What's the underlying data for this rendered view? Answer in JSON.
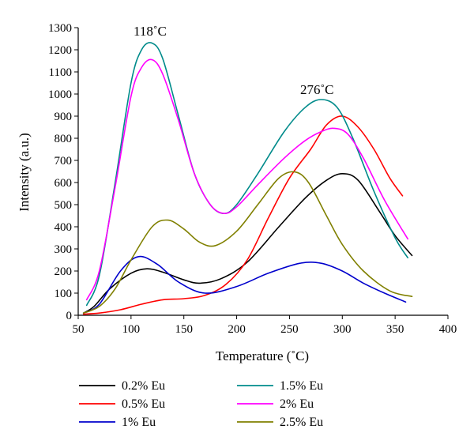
{
  "chart_data": {
    "type": "line",
    "xlabel": "Temperature (˚C)",
    "ylabel": "Intensity (a.u.)",
    "xlim": [
      50,
      400
    ],
    "ylim": [
      0,
      1300
    ],
    "xticks": [
      50,
      100,
      150,
      200,
      250,
      300,
      350,
      400
    ],
    "yticks": [
      0,
      100,
      200,
      300,
      400,
      500,
      600,
      700,
      800,
      900,
      1000,
      1100,
      1200,
      1300
    ],
    "grid": false,
    "legend_placement": "bottom",
    "annotations": [
      {
        "text": "118˚C",
        "x": 118,
        "y": 1265
      },
      {
        "text": "276˚C",
        "x": 276,
        "y": 1000
      }
    ],
    "series": [
      {
        "name": "0.2% Eu",
        "color": "#000000",
        "x": [
          55,
          65,
          80,
          100,
          115,
          130,
          150,
          165,
          185,
          210,
          240,
          265,
          285,
          300,
          315,
          335,
          350,
          366
        ],
        "y": [
          10,
          40,
          120,
          190,
          210,
          195,
          160,
          145,
          165,
          240,
          400,
          530,
          610,
          640,
          610,
          470,
          360,
          270
        ]
      },
      {
        "name": "0.5% Eu",
        "color": "#ff0000",
        "x": [
          55,
          70,
          90,
          110,
          130,
          150,
          170,
          190,
          210,
          230,
          250,
          270,
          285,
          300,
          315,
          330,
          345,
          357
        ],
        "y": [
          5,
          10,
          25,
          50,
          70,
          75,
          90,
          140,
          250,
          440,
          620,
          750,
          860,
          900,
          850,
          750,
          620,
          540
        ]
      },
      {
        "name": "1% Eu",
        "color": "#0000cc",
        "x": [
          55,
          70,
          90,
          107,
          125,
          145,
          170,
          200,
          230,
          260,
          280,
          300,
          320,
          340,
          360
        ],
        "y": [
          10,
          50,
          200,
          265,
          230,
          150,
          100,
          130,
          190,
          235,
          235,
          200,
          145,
          100,
          60
        ]
      },
      {
        "name": "1.5% Eu",
        "color": "#008b8b",
        "x": [
          58,
          70,
          85,
          100,
          110,
          120,
          130,
          145,
          160,
          175,
          188,
          200,
          220,
          245,
          265,
          280,
          295,
          310,
          330,
          350,
          362
        ],
        "y": [
          45,
          180,
          600,
          1050,
          1200,
          1230,
          1160,
          900,
          640,
          500,
          460,
          500,
          640,
          830,
          940,
          975,
          940,
          800,
          560,
          350,
          260
        ]
      },
      {
        "name": "2% Eu",
        "color": "#ff00ff",
        "x": [
          58,
          70,
          85,
          100,
          110,
          120,
          130,
          145,
          160,
          175,
          188,
          200,
          220,
          245,
          265,
          280,
          292,
          305,
          320,
          340,
          362
        ],
        "y": [
          70,
          200,
          580,
          990,
          1120,
          1155,
          1090,
          880,
          640,
          500,
          460,
          490,
          590,
          710,
          790,
          830,
          845,
          820,
          710,
          520,
          345
        ]
      },
      {
        "name": "2.5% Eu",
        "color": "#808000",
        "x": [
          55,
          70,
          85,
          100,
          120,
          135,
          150,
          165,
          180,
          200,
          220,
          240,
          255,
          268,
          285,
          300,
          320,
          345,
          366
        ],
        "y": [
          10,
          40,
          120,
          250,
          400,
          430,
          390,
          330,
          315,
          380,
          500,
          620,
          648,
          600,
          450,
          320,
          200,
          110,
          85
        ]
      }
    ]
  }
}
